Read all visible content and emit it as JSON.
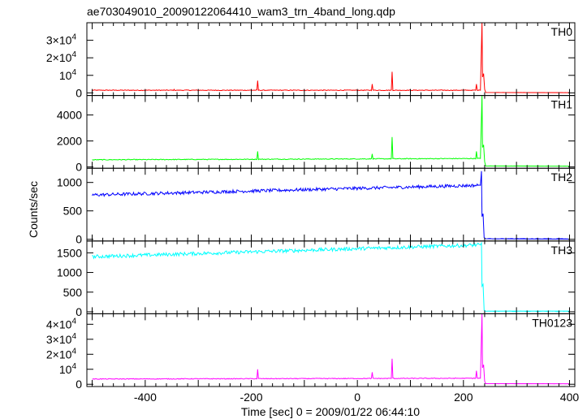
{
  "title": "ae703049010_20090122064410_wam3_trn_4band_long.qdp",
  "xlabel": "Time [sec] 0 = 2009/01/22 06:44:10",
  "ylabel": "Counts/sec",
  "chart_data": {
    "type": "line",
    "title": "ae703049010_20090122064410_wam3_trn_4band_long.qdp",
    "xlabel": "Time [sec] 0 = 2009/01/22 06:44:10",
    "ylabel": "Counts/sec",
    "xlim": [
      -510,
      410
    ],
    "x_ticks": [
      "-400",
      "-200",
      "0",
      "200",
      "400"
    ],
    "x_tick_values": [
      -400,
      -200,
      0,
      200,
      400
    ],
    "grid": false,
    "panels": [
      {
        "name": "TH0",
        "color": "#ff0000",
        "ylim": [
          -1500,
          40000
        ],
        "y_ticks": [
          {
            "v": 0,
            "t": "0",
            "exp": ""
          },
          {
            "v": 10000,
            "t": "10",
            "exp": "4"
          },
          {
            "v": 20000,
            "t": "2×10",
            "exp": "4"
          },
          {
            "v": 30000,
            "t": "3×10",
            "exp": "4"
          }
        ],
        "baseline": [
          [
            -500,
            1500
          ],
          [
            230,
            1500
          ]
        ],
        "spikes": [
          [
            -345,
            2000
          ],
          [
            -188,
            7000
          ],
          [
            28,
            5000
          ],
          [
            65,
            12000
          ],
          [
            225,
            5000
          ]
        ],
        "flare": [
          [
            232,
            1500
          ],
          [
            235,
            40000
          ],
          [
            236,
            9000
          ],
          [
            238,
            11000
          ],
          [
            240,
            2000
          ],
          [
            242,
            200
          ],
          [
            400,
            150
          ]
        ],
        "noise": 200
      },
      {
        "name": "TH1",
        "color": "#00ff00",
        "ylim": [
          -100,
          5500
        ],
        "y_ticks": [
          {
            "v": 0,
            "t": "0",
            "exp": ""
          },
          {
            "v": 2000,
            "t": "2000",
            "exp": ""
          },
          {
            "v": 4000,
            "t": "4000",
            "exp": ""
          }
        ],
        "baseline": [
          [
            -500,
            550
          ],
          [
            230,
            650
          ]
        ],
        "spikes": [
          [
            -188,
            1200
          ],
          [
            28,
            1000
          ],
          [
            65,
            2300
          ],
          [
            225,
            1200
          ]
        ],
        "flare": [
          [
            232,
            650
          ],
          [
            235,
            5500
          ],
          [
            236,
            1500
          ],
          [
            238,
            1700
          ],
          [
            240,
            400
          ],
          [
            242,
            80
          ],
          [
            400,
            60
          ]
        ],
        "noise": 30
      },
      {
        "name": "TH2",
        "color": "#0000ff",
        "ylim": [
          -30,
          1250
        ],
        "y_ticks": [
          {
            "v": 0,
            "t": "0",
            "exp": ""
          },
          {
            "v": 500,
            "t": "500",
            "exp": ""
          },
          {
            "v": 1000,
            "t": "1000",
            "exp": ""
          }
        ],
        "baseline": [
          [
            -500,
            780
          ],
          [
            230,
            950
          ]
        ],
        "spikes": [],
        "flare": [
          [
            232,
            950
          ],
          [
            234,
            1200
          ],
          [
            235,
            400
          ],
          [
            237,
            450
          ],
          [
            239,
            30
          ],
          [
            242,
            10
          ],
          [
            400,
            8
          ]
        ],
        "noise": 28
      },
      {
        "name": "TH3",
        "color": "#00ffff",
        "ylim": [
          -50,
          1800
        ],
        "y_ticks": [
          {
            "v": 0,
            "t": "0",
            "exp": ""
          },
          {
            "v": 500,
            "t": "500",
            "exp": ""
          },
          {
            "v": 1000,
            "t": "1000",
            "exp": ""
          },
          {
            "v": 1500,
            "t": "1500",
            "exp": ""
          }
        ],
        "baseline": [
          [
            -500,
            1400
          ],
          [
            230,
            1700
          ]
        ],
        "spikes": [],
        "flare": [
          [
            232,
            1700
          ],
          [
            234,
            1750
          ],
          [
            235,
            650
          ],
          [
            237,
            700
          ],
          [
            239,
            40
          ],
          [
            242,
            15
          ],
          [
            400,
            12
          ]
        ],
        "noise": 45
      },
      {
        "name": "TH0123",
        "color": "#ff00ff",
        "ylim": [
          -1500,
          47000
        ],
        "y_ticks": [
          {
            "v": 0,
            "t": "0",
            "exp": ""
          },
          {
            "v": 10000,
            "t": "10",
            "exp": "4"
          },
          {
            "v": 20000,
            "t": "2×10",
            "exp": "4"
          },
          {
            "v": 30000,
            "t": "3×10",
            "exp": "4"
          },
          {
            "v": 40000,
            "t": "4×10",
            "exp": "4"
          }
        ],
        "baseline": [
          [
            -500,
            3500
          ],
          [
            230,
            4000
          ]
        ],
        "spikes": [
          [
            -188,
            10000
          ],
          [
            28,
            8000
          ],
          [
            65,
            17000
          ],
          [
            225,
            9000
          ]
        ],
        "flare": [
          [
            232,
            4000
          ],
          [
            235,
            47000
          ],
          [
            236,
            11000
          ],
          [
            238,
            13000
          ],
          [
            240,
            2000
          ],
          [
            242,
            400
          ],
          [
            400,
            300
          ]
        ],
        "noise": 250
      }
    ]
  }
}
